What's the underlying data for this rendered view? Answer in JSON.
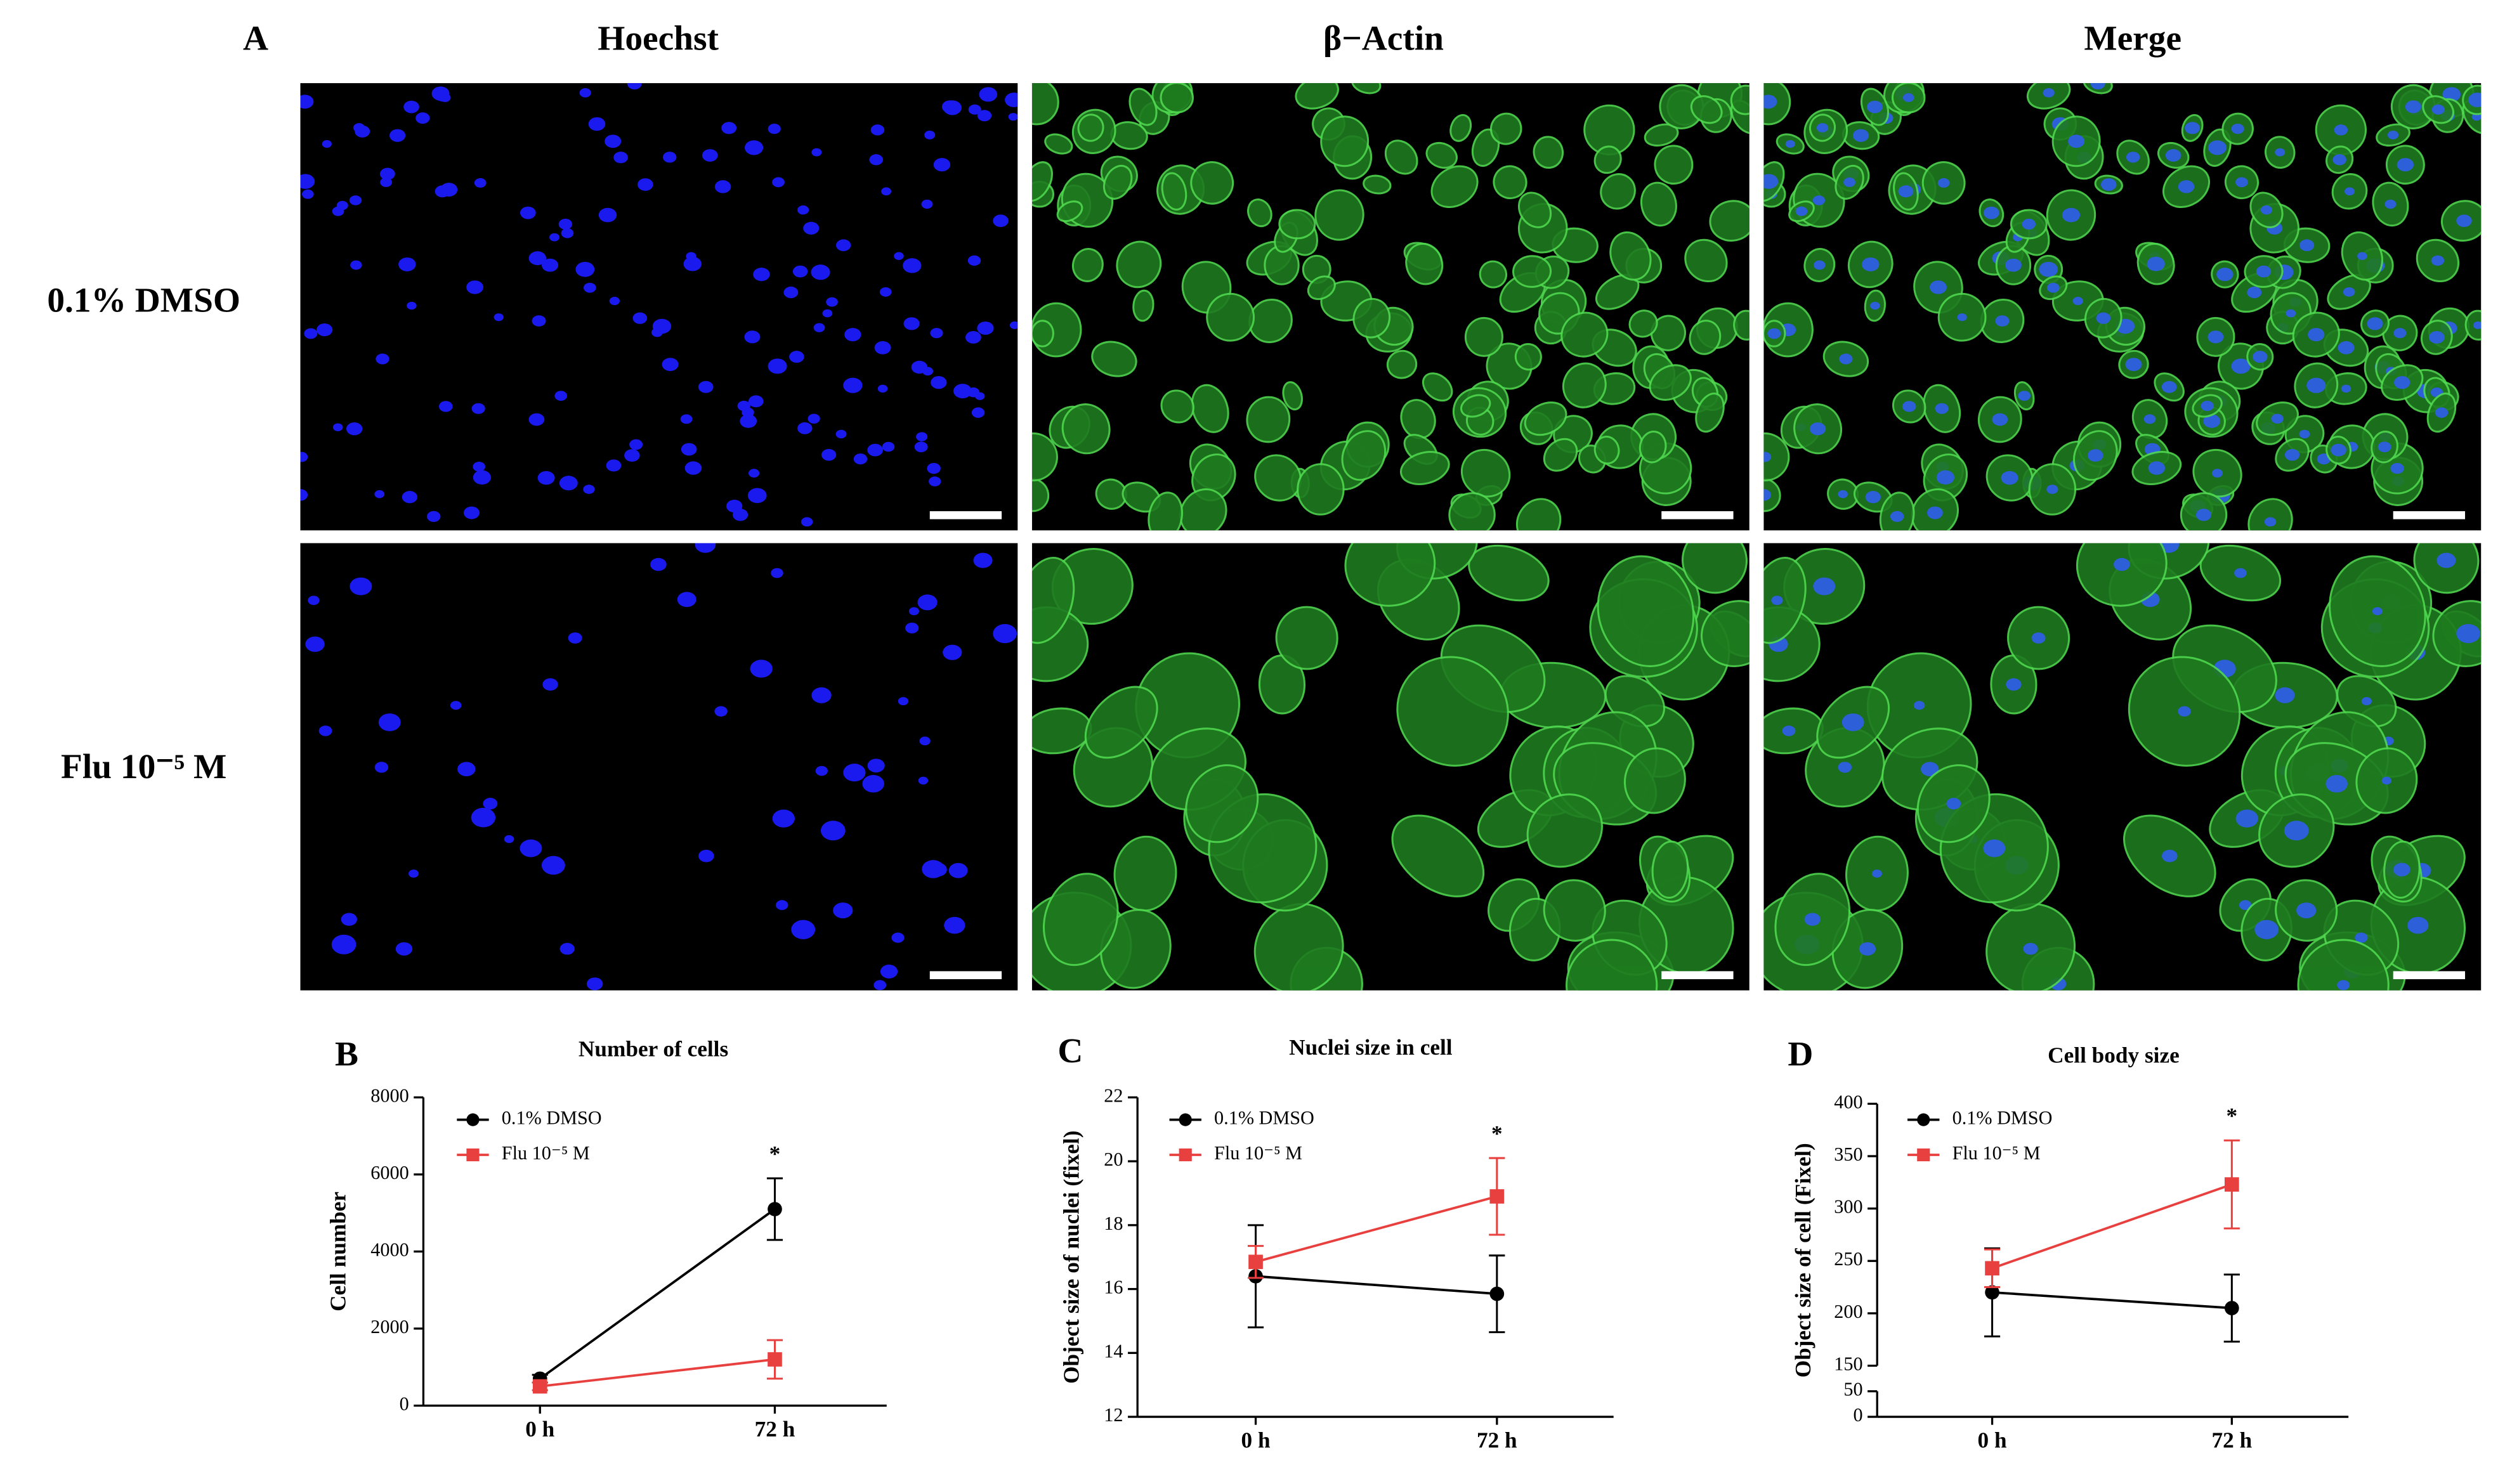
{
  "panel_a": {
    "letter": "A",
    "columns": [
      "Hoechst",
      "β−Actin",
      "Merge"
    ],
    "rows": [
      "0.1% DMSO",
      "Flu 10⁻⁵ M"
    ]
  },
  "chart_data": [
    {
      "type": "line",
      "letter": "B",
      "title": "Number of cells",
      "y_label": "Cell number",
      "categories": [
        "0 h",
        "72 h"
      ],
      "ylim": [
        0,
        8000
      ],
      "yticks": [
        0,
        2000,
        4000,
        6000,
        8000
      ],
      "annotation": "*",
      "series": [
        {
          "name": "0.1% DMSO",
          "color": "#000000",
          "marker": "circle",
          "values": [
            700,
            5100
          ],
          "errors": [
            100,
            800
          ]
        },
        {
          "name": "Flu 10⁻⁵ M",
          "color": "#e8403f",
          "marker": "square",
          "values": [
            500,
            1200
          ],
          "errors": [
            100,
            500
          ]
        }
      ]
    },
    {
      "type": "line",
      "letter": "C",
      "title": "Nuclei size in cell",
      "y_label": "Object size of nuclei (fixel)",
      "categories": [
        "0 h",
        "72 h"
      ],
      "ylim": [
        12,
        22
      ],
      "yticks": [
        12,
        14,
        16,
        18,
        20,
        22
      ],
      "annotation": "*",
      "series": [
        {
          "name": "0.1% DMSO",
          "color": "#000000",
          "marker": "circle",
          "values": [
            16.4,
            15.85
          ],
          "errors": [
            1.6,
            1.2
          ]
        },
        {
          "name": "Flu 10⁻⁵ M",
          "color": "#e8403f",
          "marker": "square",
          "values": [
            16.85,
            18.9
          ],
          "errors": [
            0.5,
            1.2
          ]
        }
      ]
    },
    {
      "type": "line",
      "letter": "D",
      "title": "Cell body size",
      "y_label": "Object size of cell (Fixel)",
      "categories": [
        "0 h",
        "72 h"
      ],
      "ylim": [
        0,
        400
      ],
      "yticks": [
        0,
        50,
        150,
        200,
        250,
        300,
        350,
        400
      ],
      "axis_break": [
        50,
        150
      ],
      "annotation": "*",
      "series": [
        {
          "name": "0.1% DMSO",
          "color": "#000000",
          "marker": "circle",
          "values": [
            220,
            205
          ],
          "errors": [
            42,
            32
          ]
        },
        {
          "name": "Flu 10⁻⁵ M",
          "color": "#e8403f",
          "marker": "square",
          "values": [
            243,
            323
          ],
          "errors": [
            18,
            42
          ]
        }
      ]
    }
  ]
}
